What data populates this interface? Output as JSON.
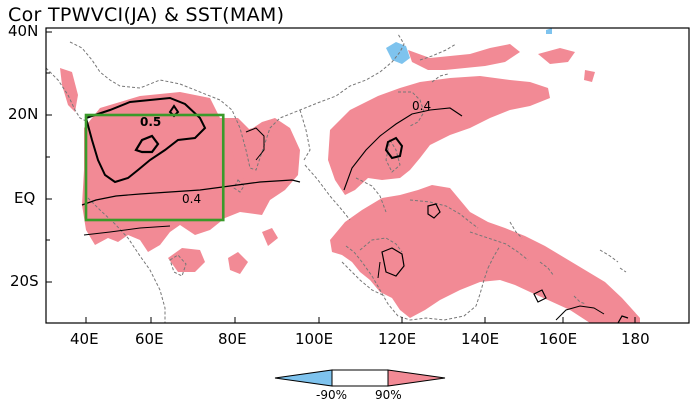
{
  "title": "Cor TPWVCI(JA) & SST(MAM)",
  "map": {
    "lat_ticks": [
      "40N",
      "20N",
      "EQ",
      "20S"
    ],
    "lon_ticks": [
      "40E",
      "60E",
      "80E",
      "100E",
      "120E",
      "140E",
      "160E",
      "180"
    ],
    "contour_labels": [
      "0.5",
      "0.4",
      "0.4"
    ],
    "colors": {
      "positive_fill": "#f28a95",
      "negative_fill": "#7ec3ee",
      "box": "#3a9a2a",
      "coastline": "#777777",
      "contour": "#000000"
    },
    "region_box": {
      "lon_min": 40,
      "lon_max": 75,
      "lat_min": -5,
      "lat_max": 20
    }
  },
  "colorbar": {
    "labels": [
      "-90%",
      "90%"
    ],
    "colors": [
      "#7ec3ee",
      "#ffffff",
      "#f28a95"
    ]
  }
}
